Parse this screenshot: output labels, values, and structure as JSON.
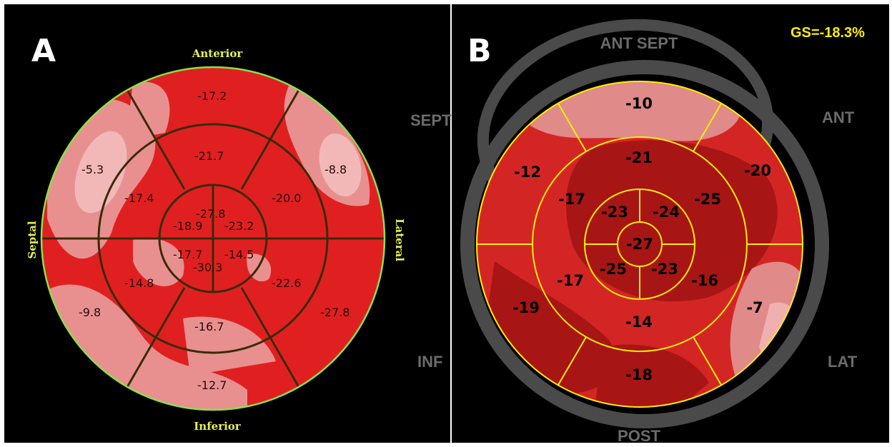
{
  "panel_a": {
    "letter": "A",
    "labels": {
      "anterior": "Anterior",
      "inferior": "Inferior",
      "septal": "Septal",
      "lateral": "Lateral"
    },
    "values": {
      "basal": [
        "-17.2",
        "-8.8",
        "-27.8",
        "-12.7",
        "-9.8",
        "-5.3"
      ],
      "mid": [
        "-21.7",
        "-20.0",
        "-22.6",
        "-16.7",
        "-14.8",
        "-17.4"
      ],
      "apical": [
        "-27.8",
        "-23.2",
        "-14.5",
        "-30.3",
        "-17.7",
        "-18.9"
      ]
    },
    "colors": {
      "fill": "#e02020",
      "pale": "#e89090",
      "line": "#3a2a08",
      "outline": "#8be04a"
    }
  },
  "panel_b": {
    "letter": "B",
    "gs": "GS=-18.3%",
    "walls": {
      "ant_sept": "ANT  SEPT",
      "sept": "SEPT",
      "ant": "ANT",
      "inf": "INF",
      "lat": "LAT",
      "post": "POST"
    },
    "values": {
      "outer": [
        "-10",
        "-20",
        "-7",
        "-18",
        "-19",
        "-12"
      ],
      "middle": [
        "-21",
        "-25",
        "-16",
        "-14",
        "-17",
        "-17"
      ],
      "inner": [
        "-24",
        "-23",
        "-25",
        "-23"
      ],
      "center": "-27"
    },
    "colors": {
      "fill": "#d42525",
      "dark": "#a81515",
      "pale": "#e08a8a",
      "line": "#ffee00",
      "ring": "#4a4a4a"
    }
  }
}
